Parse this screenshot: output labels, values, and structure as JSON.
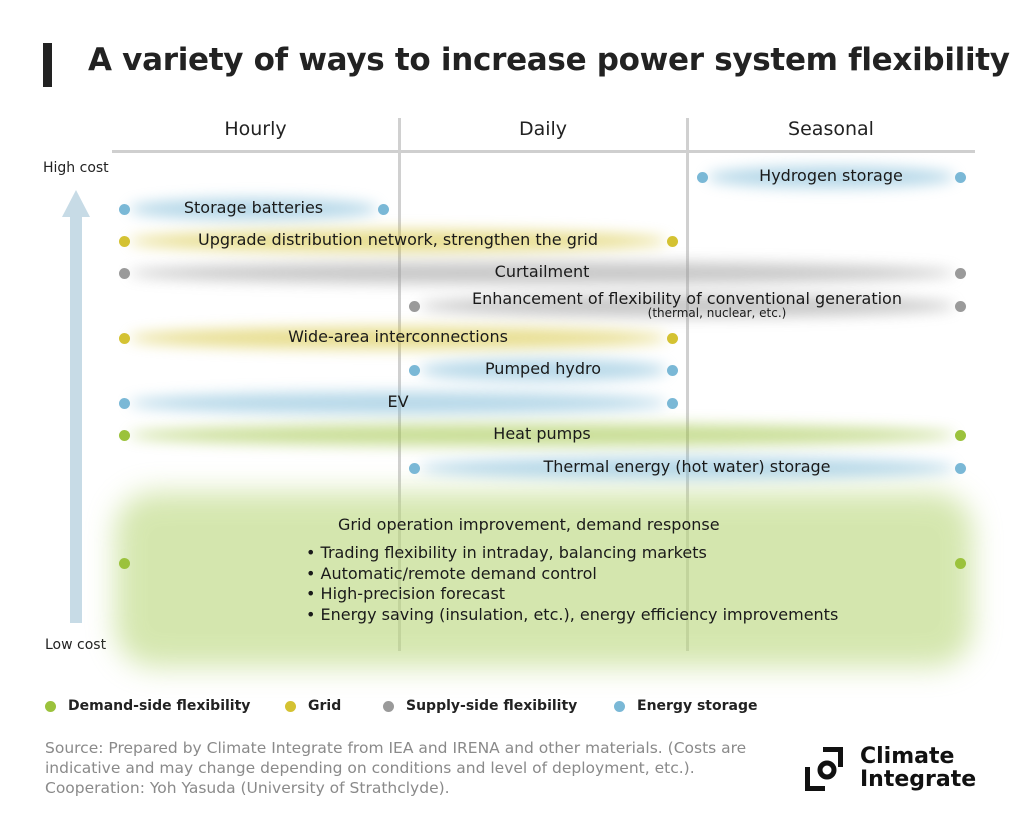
{
  "title": "A variety of ways to increase power system flexibility",
  "columns": [
    "Hourly",
    "Daily",
    "Seasonal"
  ],
  "axis": {
    "high": "High cost",
    "low": "Low cost"
  },
  "colors": {
    "demand": "#9bc23c",
    "grid": "#d4c232",
    "supply": "#9a9a9a",
    "storage": "#7ab8d6"
  },
  "rows": [
    {
      "label": "Hydrogen storage",
      "category": "storage",
      "from": "Seasonal",
      "to": "Seasonal"
    },
    {
      "label": "Storage batteries",
      "category": "storage",
      "from": "Hourly",
      "to": "Hourly"
    },
    {
      "label": "Upgrade distribution network, strengthen the grid",
      "category": "grid",
      "from": "Hourly",
      "to": "Daily"
    },
    {
      "label": "Curtailment",
      "category": "supply",
      "from": "Hourly",
      "to": "Seasonal"
    },
    {
      "label": "Enhancement of flexibility of conventional generation",
      "sublabel": "(thermal, nuclear, etc.)",
      "category": "supply",
      "from": "Daily",
      "to": "Seasonal"
    },
    {
      "label": "Wide-area interconnections",
      "category": "grid",
      "from": "Hourly",
      "to": "Daily"
    },
    {
      "label": "Pumped hydro",
      "category": "storage",
      "from": "Daily",
      "to": "Daily"
    },
    {
      "label": "EV",
      "category": "storage",
      "from": "Hourly",
      "to": "Daily"
    },
    {
      "label": "Heat pumps",
      "category": "demand",
      "from": "Hourly",
      "to": "Seasonal"
    },
    {
      "label": "Thermal energy (hot water) storage",
      "category": "storage",
      "from": "Daily",
      "to": "Seasonal"
    }
  ],
  "grid_operation": {
    "title": "Grid operation improvement, demand response",
    "category": "demand",
    "from": "Hourly",
    "to": "Seasonal",
    "bullets": [
      "Trading flexibility in intraday, balancing markets",
      "Automatic/remote demand control",
      "High-precision forecast",
      "Energy saving (insulation, etc.), energy efficiency improvements"
    ]
  },
  "legend": [
    {
      "label": "Demand-side flexibility",
      "category": "demand"
    },
    {
      "label": "Grid",
      "category": "grid"
    },
    {
      "label": "Supply-side flexibility",
      "category": "supply"
    },
    {
      "label": "Energy storage",
      "category": "storage"
    }
  ],
  "source": "Source: Prepared by Climate Integrate from IEA and IRENA and other materials. (Costs are indicative and may change depending on conditions and level of deployment, etc.). Cooperation: Yoh Yasuda (University of Strathclyde).",
  "logo": {
    "line1": "Climate",
    "line2": "Integrate"
  }
}
